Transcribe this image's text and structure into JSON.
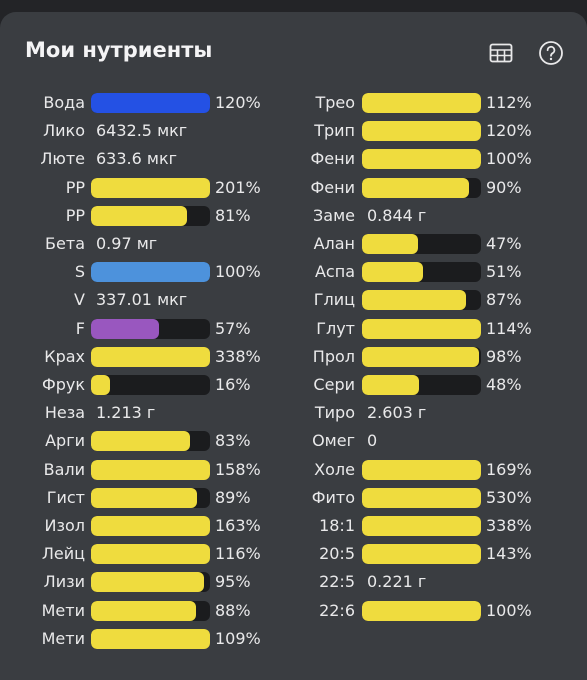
{
  "header": {
    "title": "Мои нутриенты"
  },
  "left": [
    {
      "name": "Вода",
      "percent": 120,
      "label": "120%",
      "color": "#2451e4"
    },
    {
      "name": "Лико",
      "amount": "6432.5 мкг"
    },
    {
      "name": "Люте",
      "amount": "633.6 мкг"
    },
    {
      "name": "PP",
      "percent": 201,
      "label": "201%",
      "color": "#efdc3e"
    },
    {
      "name": "PP",
      "percent": 81,
      "label": "81%",
      "color": "#efdc3e"
    },
    {
      "name": "Бета",
      "amount": "0.97 мг"
    },
    {
      "name": "S",
      "percent": 100,
      "label": "100%",
      "color": "#4d92dc"
    },
    {
      "name": "V",
      "amount": "337.01 мкг"
    },
    {
      "name": "F",
      "percent": 57,
      "label": "57%",
      "color": "#9957bf"
    },
    {
      "name": "Крах",
      "percent": 338,
      "label": "338%",
      "color": "#efdc3e"
    },
    {
      "name": "Фрук",
      "percent": 16,
      "label": "16%",
      "color": "#efdc3e"
    },
    {
      "name": "Неза",
      "amount": "1.213 г"
    },
    {
      "name": "Арги",
      "percent": 83,
      "label": "83%",
      "color": "#efdc3e"
    },
    {
      "name": "Вали",
      "percent": 158,
      "label": "158%",
      "color": "#efdc3e"
    },
    {
      "name": "Гист",
      "percent": 89,
      "label": "89%",
      "color": "#efdc3e"
    },
    {
      "name": "Изол",
      "percent": 163,
      "label": "163%",
      "color": "#efdc3e"
    },
    {
      "name": "Лейц",
      "percent": 116,
      "label": "116%",
      "color": "#efdc3e"
    },
    {
      "name": "Лизи",
      "percent": 95,
      "label": "95%",
      "color": "#efdc3e"
    },
    {
      "name": "Мети",
      "percent": 88,
      "label": "88%",
      "color": "#efdc3e"
    },
    {
      "name": "Мети",
      "percent": 109,
      "label": "109%",
      "color": "#efdc3e"
    }
  ],
  "right": [
    {
      "name": "Трео",
      "percent": 112,
      "label": "112%",
      "color": "#efdc3e"
    },
    {
      "name": "Трип",
      "percent": 120,
      "label": "120%",
      "color": "#efdc3e"
    },
    {
      "name": "Фени",
      "percent": 100,
      "label": "100%",
      "color": "#efdc3e"
    },
    {
      "name": "Фени",
      "percent": 90,
      "label": "90%",
      "color": "#efdc3e"
    },
    {
      "name": "Заме",
      "amount": "0.844 г"
    },
    {
      "name": "Алан",
      "percent": 47,
      "label": "47%",
      "color": "#efdc3e"
    },
    {
      "name": "Аспа",
      "percent": 51,
      "label": "51%",
      "color": "#efdc3e"
    },
    {
      "name": "Глиц",
      "percent": 87,
      "label": "87%",
      "color": "#efdc3e"
    },
    {
      "name": "Глут",
      "percent": 114,
      "label": "114%",
      "color": "#efdc3e"
    },
    {
      "name": "Прол",
      "percent": 98,
      "label": "98%",
      "color": "#efdc3e"
    },
    {
      "name": "Сери",
      "percent": 48,
      "label": "48%",
      "color": "#efdc3e"
    },
    {
      "name": "Тиро",
      "amount": "2.603 г"
    },
    {
      "name": "Омег",
      "amount": "0"
    },
    {
      "name": "Холе",
      "percent": 169,
      "label": "169%",
      "color": "#efdc3e"
    },
    {
      "name": "Фито",
      "percent": 530,
      "label": "530%",
      "color": "#efdc3e"
    },
    {
      "name": "18:1",
      "percent": 338,
      "label": "338%",
      "color": "#efdc3e"
    },
    {
      "name": "20:5",
      "percent": 143,
      "label": "143%",
      "color": "#efdc3e"
    },
    {
      "name": "22:5",
      "amount": "0.221 г"
    },
    {
      "name": "22:6",
      "percent": 100,
      "label": "100%",
      "color": "#efdc3e"
    }
  ]
}
